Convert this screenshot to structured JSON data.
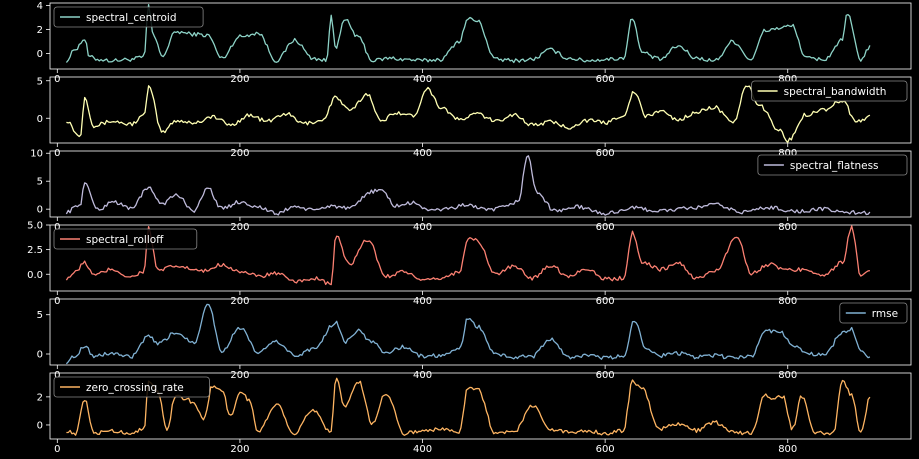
{
  "chart_data": {
    "type": "line",
    "shared_x_ticks": [
      0,
      200,
      400,
      600,
      800
    ],
    "xlim": [
      -8,
      935
    ],
    "x_count": 900,
    "background": "#000000",
    "axes_color": "#ffffff",
    "panels": [
      {
        "name": "spectral_centroid",
        "color": "#8dd3c7",
        "legend_position": "upper-left",
        "ylim": [
          -1.3,
          4.2
        ],
        "y_ticks": [
          0,
          2,
          4
        ],
        "y_tick_labels": [
          "0",
          "2",
          "4"
        ],
        "x": [
          10,
          20,
          30,
          35,
          45,
          60,
          80,
          95,
          100,
          105,
          115,
          130,
          150,
          165,
          180,
          200,
          220,
          240,
          260,
          280,
          295,
          300,
          305,
          315,
          330,
          345,
          365,
          380,
          400,
          420,
          440,
          450,
          460,
          480,
          500,
          520,
          540,
          560,
          580,
          600,
          620,
          630,
          640,
          660,
          680,
          700,
          720,
          740,
          760,
          775,
          790,
          805,
          820,
          840,
          860,
          865,
          880,
          890
        ],
        "values": [
          -0.6,
          0.4,
          1.2,
          -0.3,
          -0.5,
          -0.6,
          -0.5,
          -0.3,
          4.0,
          1.5,
          -0.2,
          1.8,
          1.6,
          1.5,
          -0.4,
          1.4,
          1.7,
          -0.6,
          1.1,
          -0.4,
          -0.6,
          3.2,
          0.5,
          2.8,
          1.3,
          -0.6,
          -0.4,
          -0.5,
          -0.6,
          -0.5,
          1.0,
          2.9,
          2.7,
          -0.5,
          -0.6,
          -0.5,
          0.3,
          -0.4,
          -0.6,
          -0.5,
          -0.4,
          3.0,
          0.1,
          -0.5,
          0.6,
          -0.4,
          -0.6,
          1.0,
          -0.5,
          1.9,
          2.1,
          2.3,
          -0.4,
          -0.5,
          1.1,
          3.3,
          -0.5,
          0.5
        ]
      },
      {
        "name": "spectral_bandwidth",
        "color": "#ffffb3",
        "legend_position": "upper-right",
        "ylim": [
          -3.3,
          5.5
        ],
        "y_ticks": [
          0,
          5
        ],
        "y_tick_labels": [
          "0",
          "5"
        ],
        "x": [
          10,
          25,
          30,
          40,
          60,
          80,
          95,
          100,
          115,
          130,
          150,
          170,
          190,
          210,
          230,
          250,
          270,
          290,
          305,
          320,
          340,
          355,
          370,
          390,
          405,
          420,
          440,
          460,
          480,
          500,
          520,
          540,
          560,
          580,
          600,
          620,
          632,
          645,
          660,
          680,
          700,
          720,
          740,
          755,
          770,
          790,
          800,
          820,
          840,
          860,
          875,
          890
        ],
        "values": [
          -0.3,
          -2.5,
          2.8,
          -1.0,
          -0.4,
          -0.8,
          0.3,
          4.2,
          -1.9,
          -0.3,
          -0.6,
          0.2,
          -0.9,
          0.4,
          -0.4,
          0.6,
          -0.7,
          -0.3,
          2.8,
          1.0,
          3.2,
          -0.5,
          0.8,
          0.3,
          4.0,
          1.5,
          -0.2,
          0.6,
          -0.4,
          0.5,
          -0.9,
          -0.5,
          -1.2,
          -0.3,
          -0.6,
          0.4,
          3.5,
          0.2,
          1.0,
          -0.2,
          0.8,
          1.5,
          -0.7,
          4.3,
          1.6,
          -1.5,
          -3.0,
          0.5,
          1.2,
          2.4,
          -0.5,
          0.2
        ]
      },
      {
        "name": "spectral_flatness",
        "color": "#bebada",
        "legend_position": "upper-right",
        "ylim": [
          -1.4,
          10.4
        ],
        "y_ticks": [
          0,
          5,
          10
        ],
        "y_tick_labels": [
          "0",
          "5",
          "10"
        ],
        "x": [
          10,
          25,
          30,
          45,
          60,
          80,
          100,
          115,
          130,
          150,
          165,
          180,
          200,
          220,
          240,
          260,
          280,
          300,
          320,
          345,
          355,
          370,
          390,
          410,
          430,
          450,
          470,
          490,
          505,
          515,
          525,
          545,
          570,
          600,
          630,
          660,
          690,
          720,
          750,
          780,
          810,
          840,
          860,
          890
        ],
        "values": [
          -0.5,
          0.8,
          4.6,
          -0.2,
          1.4,
          0.2,
          3.7,
          1.0,
          2.5,
          -0.2,
          3.8,
          0.1,
          1.3,
          0.4,
          -0.8,
          0.5,
          -0.2,
          0.6,
          0.1,
          3.2,
          3.4,
          0.6,
          1.1,
          -0.3,
          0.2,
          0.8,
          -0.2,
          0.3,
          1.5,
          9.6,
          3.1,
          -0.3,
          0.4,
          -0.8,
          0.2,
          -0.3,
          0.1,
          0.8,
          -0.5,
          0.3,
          -0.4,
          0.0,
          -0.5,
          -0.7
        ]
      },
      {
        "name": "spectral_rolloff",
        "color": "#fb8072",
        "legend_position": "upper-left",
        "ylim": [
          -1.7,
          5.0
        ],
        "y_ticks": [
          0,
          2.5,
          5
        ],
        "y_tick_labels": [
          "0.0",
          "2.5",
          "5.0"
        ],
        "x": [
          10,
          20,
          30,
          40,
          60,
          80,
          95,
          100,
          110,
          130,
          160,
          180,
          200,
          220,
          240,
          260,
          280,
          300,
          305,
          320,
          340,
          360,
          380,
          400,
          420,
          440,
          450,
          460,
          480,
          500,
          520,
          540,
          560,
          580,
          600,
          620,
          630,
          640,
          660,
          680,
          700,
          720,
          745,
          760,
          780,
          800,
          820,
          840,
          860,
          870,
          880,
          890
        ],
        "values": [
          -0.4,
          0.2,
          1.2,
          -0.1,
          0.5,
          -0.3,
          0.3,
          4.7,
          0.4,
          0.8,
          0.3,
          1.0,
          0.3,
          -0.2,
          0.1,
          -0.8,
          -0.4,
          -1.0,
          3.9,
          1.0,
          3.5,
          -0.2,
          0.3,
          -0.7,
          -0.4,
          0.2,
          3.7,
          3.4,
          0.0,
          0.8,
          -0.4,
          0.9,
          -0.2,
          0.6,
          -0.5,
          -0.4,
          4.2,
          1.3,
          0.5,
          1.1,
          -0.4,
          0.3,
          3.8,
          0.1,
          1.0,
          0.4,
          0.5,
          -0.1,
          1.2,
          4.8,
          -0.2,
          0.3
        ]
      },
      {
        "name": "rmse",
        "color": "#80b1d3",
        "legend_position": "upper-right",
        "ylim": [
          -1.4,
          7.0
        ],
        "y_ticks": [
          0,
          5
        ],
        "y_tick_labels": [
          "0",
          "5"
        ],
        "x": [
          10,
          20,
          30,
          40,
          60,
          80,
          100,
          110,
          130,
          150,
          165,
          180,
          200,
          220,
          240,
          260,
          280,
          305,
          315,
          330,
          345,
          360,
          380,
          400,
          420,
          440,
          450,
          460,
          480,
          500,
          520,
          540,
          560,
          580,
          600,
          620,
          632,
          645,
          660,
          680,
          700,
          720,
          740,
          760,
          775,
          790,
          805,
          820,
          840,
          860,
          870,
          880,
          890
        ],
        "values": [
          -1.0,
          -0.2,
          1.1,
          -0.3,
          0.1,
          -0.4,
          2.2,
          1.3,
          2.7,
          1.5,
          6.5,
          0.4,
          3.3,
          0.2,
          1.6,
          -0.2,
          0.6,
          4.0,
          1.6,
          2.9,
          1.5,
          0.2,
          0.9,
          -0.3,
          -0.2,
          0.5,
          4.6,
          3.5,
          0.0,
          -0.4,
          -0.3,
          1.9,
          -0.4,
          -0.2,
          -0.5,
          -0.3,
          4.2,
          0.8,
          -0.2,
          0.1,
          -0.4,
          -0.2,
          -0.5,
          -0.3,
          2.9,
          3.0,
          1.2,
          0.1,
          -0.2,
          2.7,
          3.2,
          0.3,
          -0.4
        ]
      },
      {
        "name": "zero_crossing_rate",
        "color": "#fdb462",
        "legend_position": "upper-left",
        "ylim": [
          -1.0,
          3.7
        ],
        "y_ticks": [
          0,
          2
        ],
        "y_tick_labels": [
          "0",
          "2"
        ],
        "x": [
          10,
          20,
          30,
          40,
          60,
          80,
          95,
          100,
          110,
          120,
          130,
          140,
          150,
          160,
          170,
          180,
          190,
          200,
          210,
          220,
          240,
          260,
          280,
          300,
          305,
          315,
          330,
          345,
          360,
          380,
          400,
          420,
          440,
          450,
          460,
          480,
          500,
          520,
          540,
          560,
          580,
          600,
          620,
          630,
          640,
          660,
          680,
          700,
          720,
          740,
          760,
          775,
          785,
          795,
          805,
          815,
          830,
          850,
          860,
          870,
          880,
          890
        ],
        "values": [
          -0.4,
          -0.7,
          1.8,
          -0.6,
          -0.4,
          -0.6,
          -0.2,
          3.0,
          2.4,
          -0.3,
          2.2,
          1.9,
          1.5,
          0.4,
          2.8,
          2.5,
          0.6,
          2.4,
          1.8,
          -0.5,
          1.5,
          -0.6,
          1.1,
          -0.5,
          3.4,
          1.3,
          3.1,
          0.1,
          2.3,
          -0.6,
          -0.4,
          -0.3,
          -0.5,
          2.7,
          2.6,
          -0.6,
          -0.5,
          1.4,
          -0.3,
          -0.5,
          -0.4,
          -0.6,
          -0.4,
          3.1,
          2.6,
          -0.3,
          0.1,
          -0.4,
          0.2,
          -0.5,
          -0.6,
          2.1,
          1.9,
          2.0,
          -0.3,
          2.0,
          -0.5,
          -0.6,
          3.2,
          2.1,
          -0.6,
          2.0
        ]
      }
    ]
  }
}
